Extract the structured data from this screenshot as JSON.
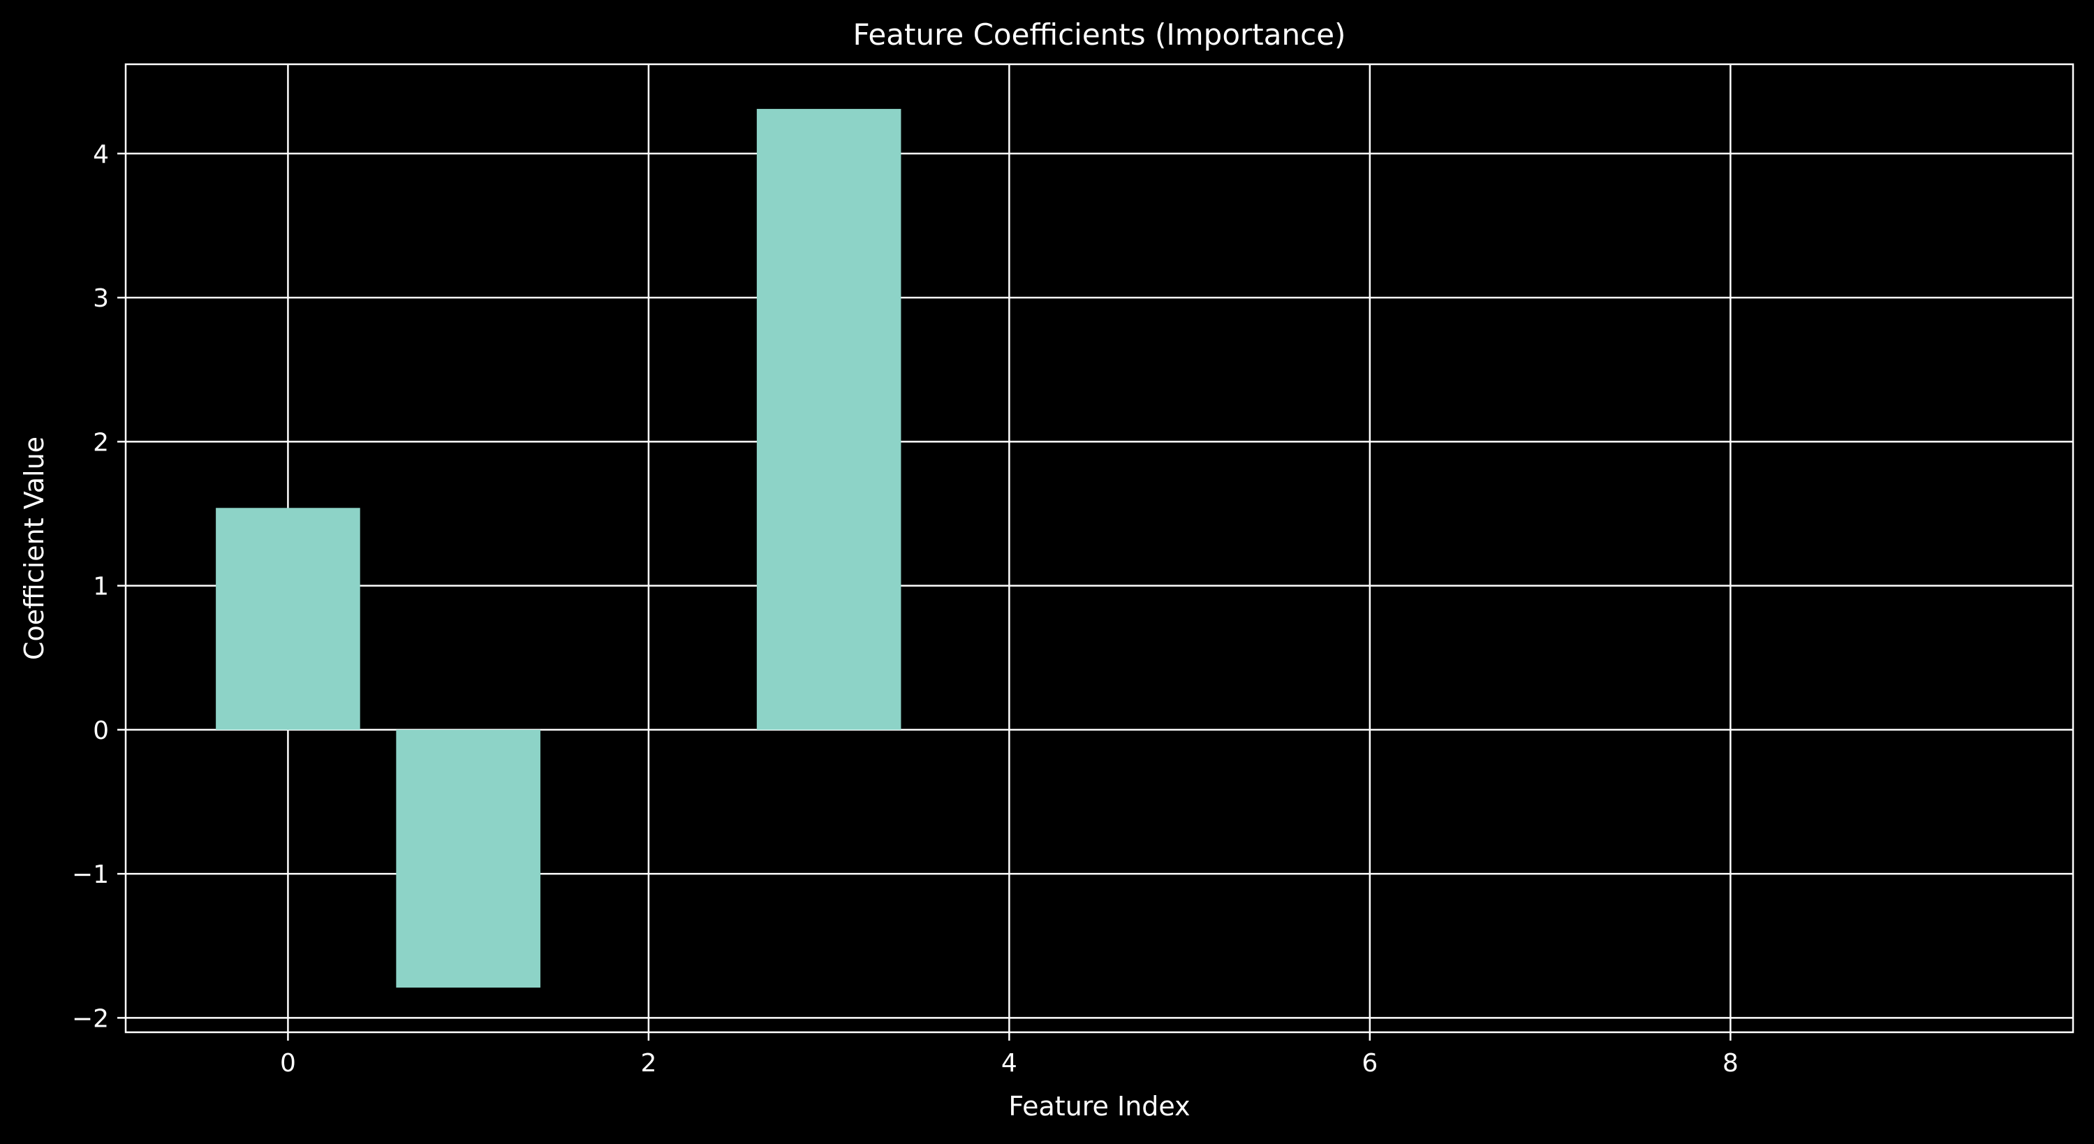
{
  "chart_data": {
    "type": "bar",
    "title": "Feature Coefficients (Importance)",
    "xlabel": "Feature Index",
    "ylabel": "Coefficient Value",
    "x": [
      0,
      1,
      2,
      3,
      4,
      5,
      6,
      7,
      8,
      9
    ],
    "values": [
      1.54,
      -1.79,
      0.0,
      4.31,
      0.0,
      0.0,
      0.0,
      0.0,
      0.0,
      0.0
    ],
    "xlim": [
      -0.9,
      9.9
    ],
    "ylim": [
      -2.1,
      4.62
    ],
    "xticks": [
      0,
      2,
      4,
      6,
      8
    ],
    "yticks": [
      -2,
      -1,
      0,
      1,
      2,
      3,
      4
    ],
    "xtick_labels": [
      "0",
      "2",
      "4",
      "6",
      "8"
    ],
    "ytick_labels": [
      "−2",
      "−1",
      "0",
      "1",
      "2",
      "3",
      "4"
    ],
    "bar_width": 0.8,
    "grid": true,
    "colors": {
      "background": "#000000",
      "bar": "#8dd3c7",
      "foreground": "#ffffff"
    }
  }
}
